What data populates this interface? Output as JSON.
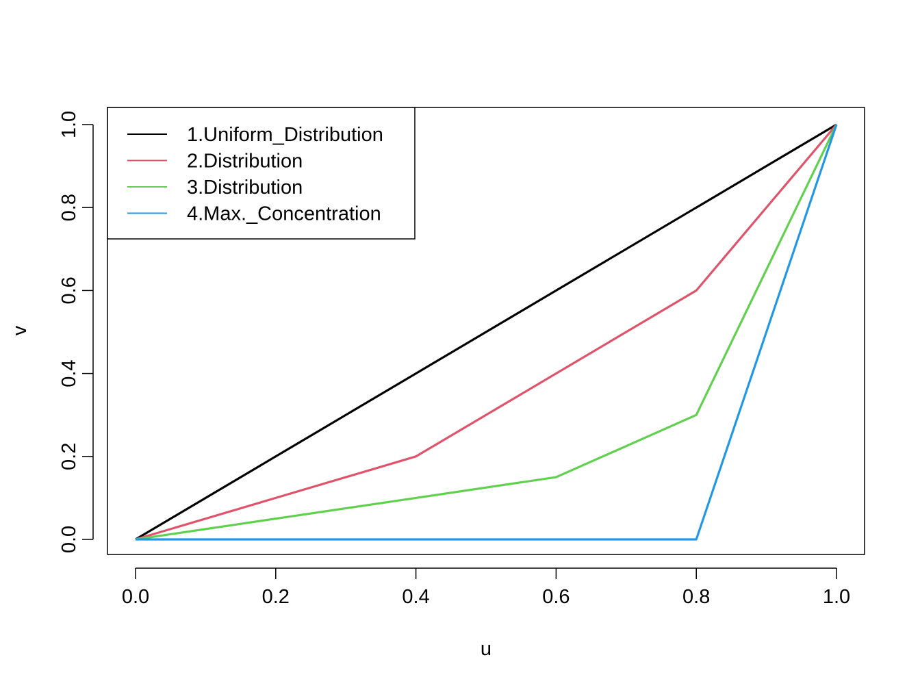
{
  "chart_data": {
    "type": "line",
    "title": "",
    "xlabel": "u",
    "ylabel": "v",
    "xlim": [
      0,
      1
    ],
    "ylim": [
      0,
      1
    ],
    "x_ticks": [
      "0.0",
      "0.2",
      "0.4",
      "0.6",
      "0.8",
      "1.0"
    ],
    "y_ticks": [
      "0.0",
      "0.2",
      "0.4",
      "0.6",
      "0.8",
      "1.0"
    ],
    "grid": false,
    "legend_position": "top-left",
    "series": [
      {
        "name": "1.Uniform_Distribution",
        "color": "#000000",
        "x": [
          0,
          0.2,
          0.4,
          0.6,
          0.8,
          1.0
        ],
        "y": [
          0,
          0.2,
          0.4,
          0.6,
          0.8,
          1.0
        ]
      },
      {
        "name": "2.Distribution",
        "color": "#DF536B",
        "x": [
          0,
          0.2,
          0.4,
          0.6,
          0.8,
          1.0
        ],
        "y": [
          0,
          0.1,
          0.2,
          0.4,
          0.6,
          1.0
        ]
      },
      {
        "name": "3.Distribution",
        "color": "#61D04F",
        "x": [
          0,
          0.2,
          0.4,
          0.6,
          0.8,
          1.0
        ],
        "y": [
          0,
          0.05,
          0.1,
          0.15,
          0.3,
          1.0
        ]
      },
      {
        "name": "4.Max._Concentration",
        "color": "#2297E6",
        "x": [
          0,
          0.2,
          0.4,
          0.6,
          0.8,
          1.0
        ],
        "y": [
          0,
          0,
          0,
          0,
          0,
          1.0
        ]
      }
    ]
  }
}
